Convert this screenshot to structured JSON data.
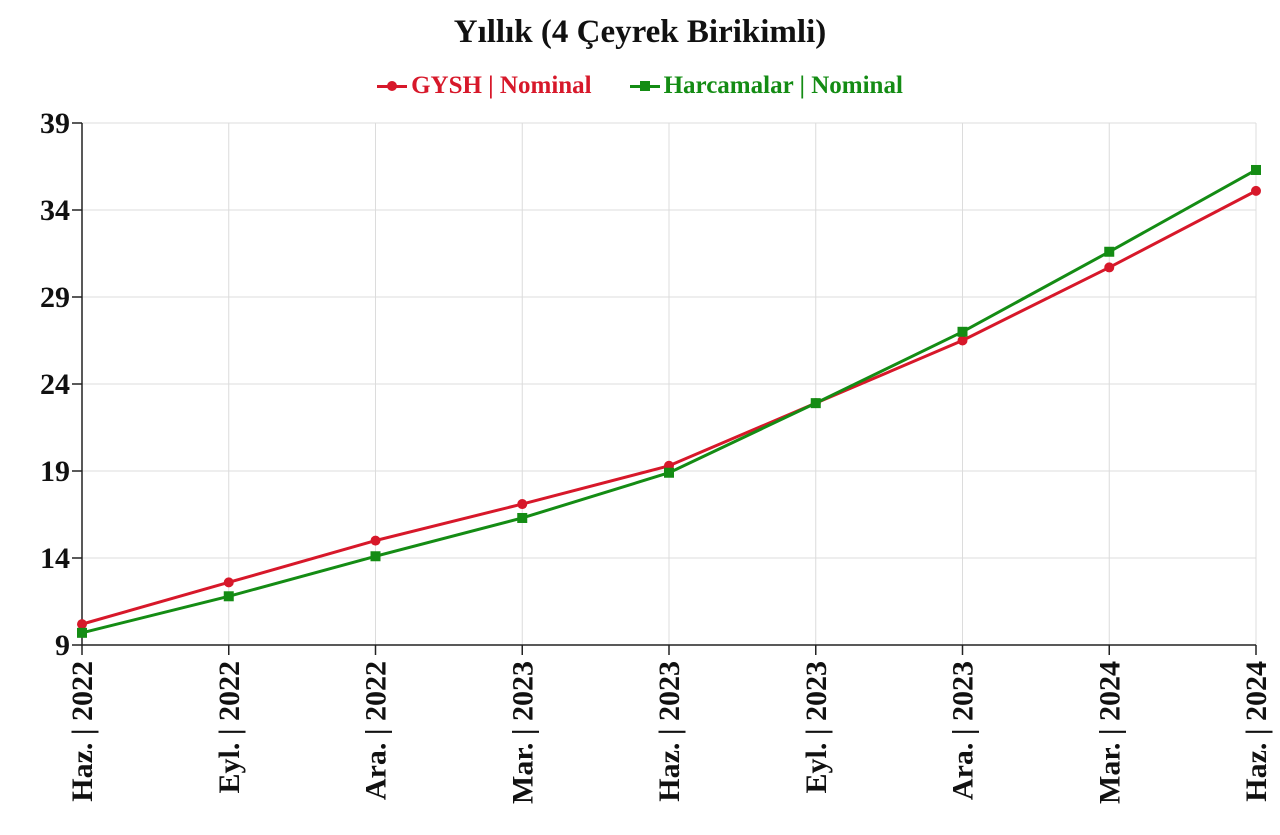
{
  "chart_data": {
    "type": "line",
    "title": "Yıllık (4 Çeyrek Birikimli)",
    "xlabel": "",
    "ylabel": "",
    "categories": [
      "Haz. | 2022",
      "Eyl. | 2022",
      "Ara. | 2022",
      "Mar. | 2023",
      "Haz. | 2023",
      "Eyl. | 2023",
      "Ara. | 2023",
      "Mar. | 2024",
      "Haz. | 2024"
    ],
    "ylim": [
      9,
      39
    ],
    "yticks": [
      9,
      14,
      19,
      24,
      29,
      34,
      39
    ],
    "grid": true,
    "legend_position": "top-center",
    "series": [
      {
        "name": "GYSH | Nominal",
        "color": "#d7182a",
        "marker": "circle",
        "values": [
          10.2,
          12.6,
          15.0,
          17.1,
          19.3,
          22.9,
          26.5,
          30.7,
          35.1
        ]
      },
      {
        "name": "Harcamalar | Nominal",
        "color": "#148c14",
        "marker": "square",
        "values": [
          9.7,
          11.8,
          14.1,
          16.3,
          18.9,
          22.9,
          27.0,
          31.6,
          36.3
        ]
      }
    ]
  }
}
